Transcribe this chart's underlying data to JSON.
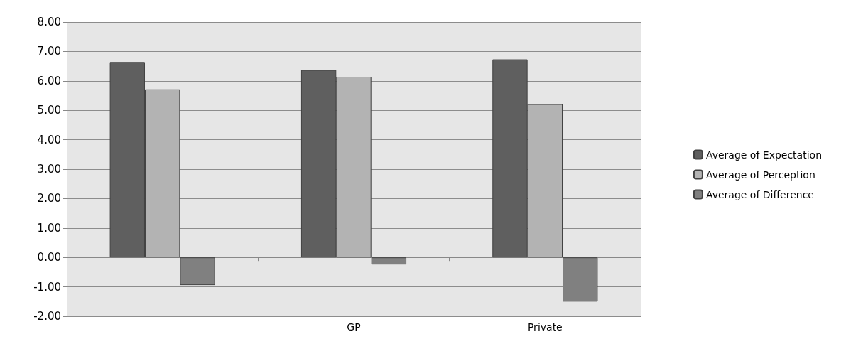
{
  "chart_data": {
    "type": "bar",
    "categories": [
      null,
      "GP",
      "Private"
    ],
    "series": [
      {
        "name": "Average of Expectation",
        "color": "#5f5f5f",
        "values": [
          6.64,
          6.37,
          6.73
        ]
      },
      {
        "name": "Average of Perception",
        "color": "#b3b3b3",
        "values": [
          5.71,
          6.14,
          5.21
        ]
      },
      {
        "name": "Average of Difference",
        "color": "#808080",
        "values": [
          -0.94,
          -0.24,
          -1.5
        ]
      }
    ],
    "ylim": [
      -2,
      8
    ],
    "yticks": [
      {
        "value": -2,
        "label": "-2.00"
      },
      {
        "value": -1,
        "label": "-1.00"
      },
      {
        "value": 0,
        "label": "0.00"
      },
      {
        "value": 1,
        "label": "1.00"
      },
      {
        "value": 2,
        "label": "2.00"
      },
      {
        "value": 3,
        "label": "3.00"
      },
      {
        "value": 4,
        "label": "4.00"
      },
      {
        "value": 5,
        "label": "5.00"
      },
      {
        "value": 6,
        "label": "6.00"
      },
      {
        "value": 7,
        "label": "7.00"
      },
      {
        "value": 8,
        "label": "8.00"
      }
    ],
    "grid": "y",
    "legend": "right"
  }
}
